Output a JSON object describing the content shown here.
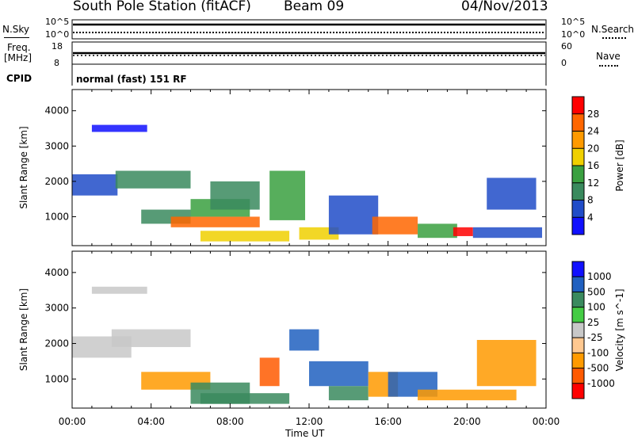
{
  "header": {
    "station": "South Pole Station (fitACF)",
    "beam": "Beam 09",
    "date": "04/Nov/2013"
  },
  "top_panels": {
    "nsky_label": "N.Sky",
    "nsky_hi": "10^5",
    "nsky_lo": "10^0",
    "nsearch_label": "N.Search",
    "nsearch_hi": "10^5",
    "nsearch_lo": "10^0",
    "freq_label": "Freq.",
    "freq_unit": "[MHz]",
    "freq_hi": "18",
    "freq_lo": "8",
    "nave_label": "Nave",
    "nave_hi": "60",
    "nave_lo": "0",
    "cpid_label": "CPID",
    "cpid_text": "normal (fast) 151 RF"
  },
  "colors": {
    "power": [
      "#1010ff",
      "#204cc8",
      "#3a8a5e",
      "#3aa040",
      "#f0d000",
      "#ff9a00",
      "#ff6600",
      "#ff0000"
    ],
    "velocity": [
      "#ff0000",
      "#ff5a00",
      "#ff9a00",
      "#ffc890",
      "#c8c8c8",
      "#44cc44",
      "#3a8a5e",
      "#2060c0",
      "#1010ff"
    ]
  },
  "chart_data": [
    {
      "type": "heatmap",
      "title": "Power",
      "ylabel": "Slant Range [km]",
      "xlabel": "",
      "ylim": [
        180,
        4600
      ],
      "yticks": [
        "1000",
        "2000",
        "3000",
        "4000"
      ],
      "xlim_hours": [
        0,
        24
      ],
      "colorbar_label": "Power [dB]",
      "colorbar_ticks": [
        "4",
        "8",
        "12",
        "16",
        "20",
        "24",
        "28"
      ],
      "colorbar_range": [
        0,
        32
      ],
      "regions": [
        {
          "t": [
            0.0,
            2.3
          ],
          "r": [
            1600,
            2200
          ],
          "dB": 7
        },
        {
          "t": [
            1.0,
            3.8
          ],
          "r": [
            3400,
            3600
          ],
          "dB": 3
        },
        {
          "t": [
            2.2,
            6.0
          ],
          "r": [
            1800,
            2300
          ],
          "dB": 9
        },
        {
          "t": [
            3.5,
            6.0
          ],
          "r": [
            800,
            1200
          ],
          "dB": 11
        },
        {
          "t": [
            5.0,
            9.5
          ],
          "r": [
            700,
            1000
          ],
          "dB": 24
        },
        {
          "t": [
            6.0,
            9.0
          ],
          "r": [
            1000,
            1500
          ],
          "dB": 12
        },
        {
          "t": [
            6.5,
            11.0
          ],
          "r": [
            300,
            600
          ],
          "dB": 17
        },
        {
          "t": [
            7.0,
            9.5
          ],
          "r": [
            1200,
            2000
          ],
          "dB": 9
        },
        {
          "t": [
            10.0,
            11.8
          ],
          "r": [
            900,
            2300
          ],
          "dB": 14
        },
        {
          "t": [
            11.5,
            13.5
          ],
          "r": [
            350,
            700
          ],
          "dB": 18
        },
        {
          "t": [
            13.0,
            15.5
          ],
          "r": [
            500,
            1600
          ],
          "dB": 6
        },
        {
          "t": [
            15.2,
            17.5
          ],
          "r": [
            500,
            1000
          ],
          "dB": 26
        },
        {
          "t": [
            17.5,
            19.5
          ],
          "r": [
            400,
            800
          ],
          "dB": 15
        },
        {
          "t": [
            19.3,
            20.3
          ],
          "r": [
            450,
            700
          ],
          "dB": 28
        },
        {
          "t": [
            20.3,
            23.8
          ],
          "r": [
            400,
            700
          ],
          "dB": 6
        },
        {
          "t": [
            21.0,
            23.5
          ],
          "r": [
            1200,
            2100
          ],
          "dB": 7
        }
      ]
    },
    {
      "type": "heatmap",
      "title": "Velocity",
      "ylabel": "Slant Range [km]",
      "xlabel": "Time UT",
      "ylim": [
        180,
        4600
      ],
      "yticks": [
        "1000",
        "2000",
        "3000",
        "4000"
      ],
      "xticks": [
        "00:00",
        "04:00",
        "08:00",
        "12:00",
        "16:00",
        "20:00",
        "00:00"
      ],
      "xlim_hours": [
        0,
        24
      ],
      "colorbar_label": "Velocity [m s^-1]",
      "colorbar_ticks": [
        "1000",
        "500",
        "100",
        "25",
        "-25",
        "-100",
        "-500",
        "-1000"
      ],
      "regions": [
        {
          "t": [
            0.0,
            3.0
          ],
          "r": [
            1600,
            2200
          ],
          "v": 0
        },
        {
          "t": [
            2.0,
            6.0
          ],
          "r": [
            1900,
            2400
          ],
          "v": 0
        },
        {
          "t": [
            1.0,
            3.8
          ],
          "r": [
            3400,
            3600
          ],
          "v": 0
        },
        {
          "t": [
            3.5,
            7.0
          ],
          "r": [
            700,
            1200
          ],
          "v": -300
        },
        {
          "t": [
            6.0,
            9.0
          ],
          "r": [
            300,
            900
          ],
          "v": 150
        },
        {
          "t": [
            6.5,
            11.0
          ],
          "r": [
            300,
            600
          ],
          "v": 200
        },
        {
          "t": [
            9.5,
            10.5
          ],
          "r": [
            800,
            1600
          ],
          "v": -800
        },
        {
          "t": [
            11.0,
            12.5
          ],
          "r": [
            1800,
            2400
          ],
          "v": 700
        },
        {
          "t": [
            12.0,
            15.0
          ],
          "r": [
            800,
            1500
          ],
          "v": 600
        },
        {
          "t": [
            13.0,
            15.0
          ],
          "r": [
            400,
            800
          ],
          "v": 150
        },
        {
          "t": [
            15.0,
            16.5
          ],
          "r": [
            500,
            1200
          ],
          "v": -300
        },
        {
          "t": [
            16.0,
            18.5
          ],
          "r": [
            500,
            1200
          ],
          "v": 600
        },
        {
          "t": [
            17.5,
            22.5
          ],
          "r": [
            400,
            700
          ],
          "v": -400
        },
        {
          "t": [
            20.5,
            23.5
          ],
          "r": [
            800,
            2100
          ],
          "v": -300
        }
      ]
    }
  ]
}
